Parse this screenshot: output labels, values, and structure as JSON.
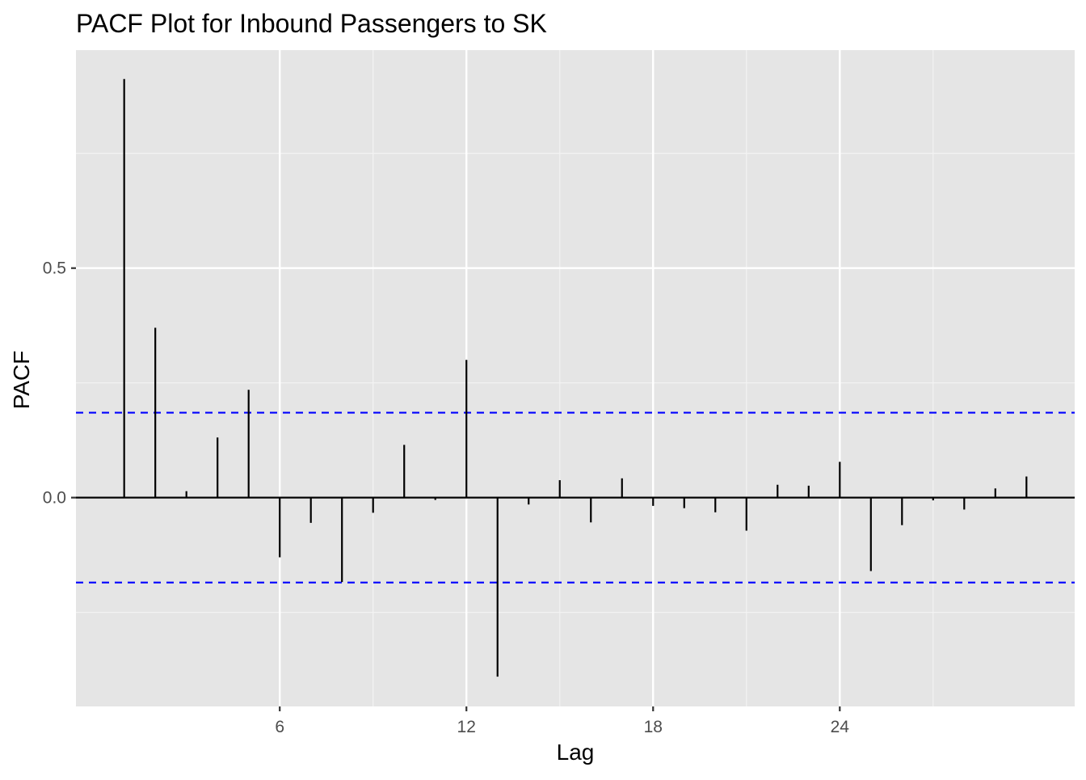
{
  "chart_data": {
    "type": "bar",
    "subtype": "pacf-lollipop",
    "title": "PACF Plot for Inbound Passengers to SK",
    "xlabel": "Lag",
    "ylabel": "PACF",
    "x_ticks": [
      6,
      12,
      18,
      24
    ],
    "y_ticks": [
      0.0,
      0.5
    ],
    "y_tick_labels": [
      "0.0",
      "0.5"
    ],
    "xlim": [
      -0.55,
      31.55
    ],
    "ylim": [
      -0.455,
      0.975
    ],
    "confidence_bound": 0.185,
    "confidence_color": "#0000ff",
    "series": [
      {
        "name": "PACF",
        "lags": [
          1,
          2,
          3,
          4,
          5,
          6,
          7,
          8,
          9,
          10,
          11,
          12,
          13,
          14,
          15,
          16,
          17,
          18,
          19,
          20,
          21,
          22,
          23,
          24,
          25,
          26,
          27,
          28,
          29,
          30
        ],
        "values": [
          0.912,
          0.37,
          0.014,
          0.131,
          0.235,
          -0.13,
          -0.055,
          -0.184,
          -0.033,
          0.115,
          -0.005,
          0.3,
          -0.39,
          -0.015,
          0.038,
          -0.054,
          0.042,
          -0.018,
          -0.023,
          -0.032,
          -0.072,
          0.028,
          0.026,
          0.078,
          -0.16,
          -0.06,
          -0.006,
          -0.026,
          0.02,
          0.046
        ]
      }
    ],
    "grid": true,
    "legend": "none"
  }
}
